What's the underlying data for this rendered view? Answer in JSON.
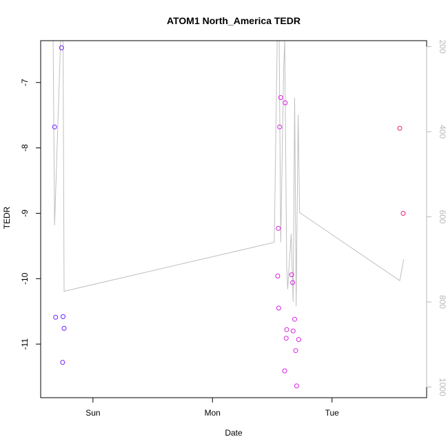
{
  "chart_data": {
    "type": "scatter",
    "title": "ATOM1 North_America TEDR",
    "xlabel": "Date",
    "ylabel": "TEDR",
    "x_ticks": [
      {
        "label": "Sun",
        "t": 0.0
      },
      {
        "label": "Mon",
        "t": 24.0
      },
      {
        "label": "Tue",
        "t": 48.0
      }
    ],
    "xlim": [
      -10.5,
      67.0
    ],
    "ylim": [
      -11.82,
      -6.36
    ],
    "y_ticks": [
      -7,
      -8,
      -9,
      -10,
      -11
    ],
    "y2_ticks": [
      200,
      400,
      600,
      800,
      1000
    ],
    "y2lim": [
      186,
      1025
    ],
    "scatter_series": [
      {
        "color": "#6a1bff",
        "points": [
          {
            "t": -7.7,
            "y": -7.68
          },
          {
            "t": -7.5,
            "y": -10.59
          },
          {
            "t": -6.3,
            "y": -6.47
          },
          {
            "t": -6.1,
            "y": -11.28
          },
          {
            "t": -6.0,
            "y": -10.58
          },
          {
            "t": -5.8,
            "y": -10.76
          }
        ]
      },
      {
        "color": "#d81fe0",
        "points": [
          {
            "t": 37.1,
            "y": -9.96
          },
          {
            "t": 37.2,
            "y": -9.23
          },
          {
            "t": 37.3,
            "y": -10.45
          },
          {
            "t": 37.5,
            "y": -7.68
          },
          {
            "t": 37.7,
            "y": -7.23
          },
          {
            "t": 38.6,
            "y": -7.31
          },
          {
            "t": 38.5,
            "y": -11.41
          },
          {
            "t": 38.8,
            "y": -10.91
          },
          {
            "t": 38.9,
            "y": -10.78
          },
          {
            "t": 39.9,
            "y": -9.94
          },
          {
            "t": 40.1,
            "y": -10.06
          },
          {
            "t": 40.2,
            "y": -10.8
          },
          {
            "t": 40.5,
            "y": -10.62
          },
          {
            "t": 40.7,
            "y": -11.1
          },
          {
            "t": 40.9,
            "y": -11.64
          },
          {
            "t": 41.3,
            "y": -10.93
          }
        ]
      },
      {
        "color": "#ee1f7c",
        "points": [
          {
            "t": 61.6,
            "y": -7.7
          },
          {
            "t": 62.3,
            "y": -9.0
          }
        ]
      }
    ],
    "line_series": {
      "color": "#bfbfbf",
      "axis": "right",
      "points": [
        {
          "t": -8.0,
          "y2": 186
        },
        {
          "t": -7.7,
          "y2": 620
        },
        {
          "t": -6.5,
          "y2": 186
        },
        {
          "t": -6.0,
          "y2": 186
        },
        {
          "t": -5.8,
          "y2": 775
        },
        {
          "t": 36.4,
          "y2": 660
        },
        {
          "t": 37.0,
          "y2": 186
        },
        {
          "t": 37.4,
          "y2": 186
        },
        {
          "t": 37.7,
          "y2": 660
        },
        {
          "t": 38.3,
          "y2": 250
        },
        {
          "t": 38.5,
          "y2": 186
        },
        {
          "t": 38.9,
          "y2": 720
        },
        {
          "t": 39.1,
          "y2": 770
        },
        {
          "t": 39.8,
          "y2": 640
        },
        {
          "t": 40.2,
          "y2": 800
        },
        {
          "t": 40.5,
          "y2": 320
        },
        {
          "t": 40.8,
          "y2": 810
        },
        {
          "t": 41.2,
          "y2": 360
        },
        {
          "t": 41.5,
          "y2": 590
        },
        {
          "t": 61.6,
          "y2": 750
        },
        {
          "t": 62.4,
          "y2": 700
        }
      ]
    }
  }
}
